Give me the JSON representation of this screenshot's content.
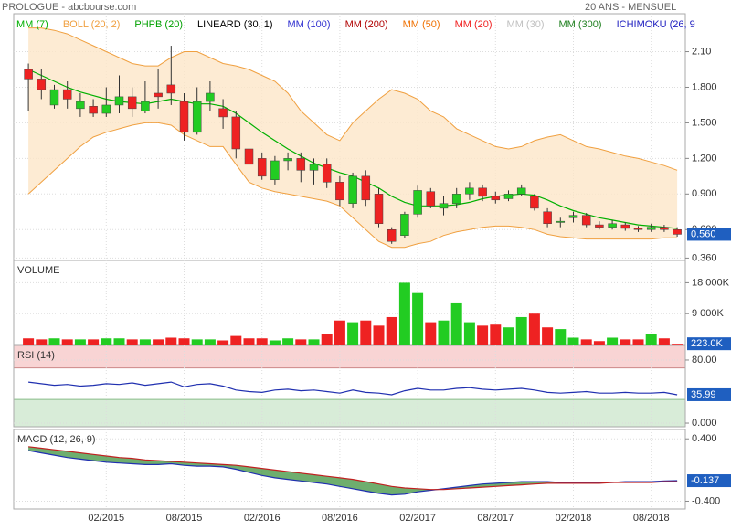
{
  "header": {
    "title": "PROLOGUE - abcbourse.com",
    "period": "20 ANS - MENSUEL"
  },
  "chart_data": [
    {
      "type": "candlestick",
      "categories": [
        null,
        null,
        null,
        null,
        null,
        null,
        "02/2015",
        null,
        null,
        null,
        null,
        null,
        "08/2015",
        null,
        null,
        null,
        null,
        null,
        "02/2016",
        null,
        null,
        null,
        null,
        null,
        "08/2016",
        null,
        null,
        null,
        null,
        null,
        "02/2017",
        null,
        null,
        null,
        null,
        null,
        "08/2017",
        null,
        null,
        null,
        null,
        null,
        "02/2018",
        null,
        null,
        null,
        null,
        null,
        "08/2018",
        null,
        null
      ],
      "open": [
        1.95,
        1.87,
        1.65,
        1.78,
        1.62,
        1.64,
        1.58,
        1.65,
        1.72,
        1.6,
        1.75,
        1.82,
        1.68,
        1.42,
        1.68,
        1.62,
        1.55,
        1.28,
        1.2,
        1.02,
        1.18,
        1.2,
        1.1,
        1.15,
        1.0,
        0.82,
        1.05,
        0.9,
        0.6,
        0.55,
        0.73,
        0.92,
        0.78,
        0.82,
        0.9,
        0.95,
        0.88,
        0.86,
        0.9,
        0.88,
        0.75,
        0.66,
        0.7,
        0.72,
        0.64,
        0.62,
        0.64,
        0.61,
        0.6,
        0.62,
        0.6
      ],
      "high": [
        2.0,
        1.95,
        1.82,
        1.85,
        1.75,
        1.7,
        1.8,
        1.9,
        1.8,
        1.85,
        1.95,
        2.15,
        1.75,
        1.8,
        1.85,
        1.7,
        1.6,
        1.32,
        1.25,
        1.22,
        1.25,
        1.25,
        1.2,
        1.2,
        1.05,
        1.08,
        1.1,
        0.95,
        0.62,
        0.75,
        0.97,
        0.95,
        0.88,
        0.95,
        1.0,
        0.98,
        0.92,
        0.93,
        0.98,
        0.9,
        0.78,
        0.7,
        0.75,
        0.74,
        0.67,
        0.68,
        0.66,
        0.63,
        0.65,
        0.64,
        0.62
      ],
      "low": [
        1.6,
        1.7,
        1.62,
        1.62,
        1.55,
        1.55,
        1.55,
        1.58,
        1.55,
        1.58,
        1.62,
        1.65,
        1.35,
        1.4,
        1.6,
        1.45,
        1.2,
        1.08,
        1.02,
        0.98,
        1.1,
        1.0,
        0.98,
        0.95,
        0.8,
        0.78,
        0.8,
        0.62,
        0.48,
        0.53,
        0.7,
        0.78,
        0.72,
        0.78,
        0.85,
        0.84,
        0.82,
        0.84,
        0.88,
        0.76,
        0.62,
        0.62,
        0.66,
        0.62,
        0.6,
        0.6,
        0.59,
        0.58,
        0.58,
        0.58,
        0.54
      ],
      "close": [
        1.87,
        1.78,
        1.78,
        1.7,
        1.68,
        1.58,
        1.65,
        1.72,
        1.62,
        1.68,
        1.72,
        1.75,
        1.42,
        1.68,
        1.75,
        1.55,
        1.28,
        1.15,
        1.05,
        1.18,
        1.2,
        1.1,
        1.15,
        1.0,
        0.85,
        1.05,
        0.85,
        0.65,
        0.5,
        0.73,
        0.93,
        0.8,
        0.82,
        0.9,
        0.95,
        0.88,
        0.85,
        0.9,
        0.95,
        0.78,
        0.65,
        0.67,
        0.72,
        0.64,
        0.62,
        0.65,
        0.61,
        0.6,
        0.62,
        0.6,
        0.56
      ],
      "close_label": "0.560",
      "up_color": "#22cc22",
      "down_color": "#ee2222",
      "series": [
        {
          "name": "MM (7)",
          "color": "#00b000",
          "values": [
            1.95,
            1.9,
            1.85,
            1.8,
            1.76,
            1.73,
            1.7,
            1.68,
            1.67,
            1.66,
            1.68,
            1.7,
            1.68,
            1.66,
            1.66,
            1.64,
            1.58,
            1.5,
            1.42,
            1.35,
            1.28,
            1.22,
            1.16,
            1.12,
            1.08,
            1.05,
            1.0,
            0.95,
            0.88,
            0.83,
            0.8,
            0.8,
            0.8,
            0.81,
            0.83,
            0.86,
            0.88,
            0.89,
            0.9,
            0.89,
            0.85,
            0.8,
            0.76,
            0.73,
            0.7,
            0.68,
            0.66,
            0.64,
            0.63,
            0.62,
            0.61
          ]
        },
        {
          "name": "BOLL (20, 2)",
          "color": "#f0a040",
          "fill": "#fde6c8",
          "upper": [
            2.3,
            2.3,
            2.28,
            2.25,
            2.2,
            2.15,
            2.1,
            2.05,
            2.0,
            1.98,
            1.98,
            2.05,
            2.1,
            2.1,
            2.05,
            2.0,
            1.98,
            1.95,
            1.9,
            1.85,
            1.75,
            1.6,
            1.5,
            1.4,
            1.35,
            1.5,
            1.6,
            1.7,
            1.78,
            1.75,
            1.7,
            1.6,
            1.55,
            1.45,
            1.4,
            1.35,
            1.3,
            1.28,
            1.3,
            1.35,
            1.38,
            1.4,
            1.35,
            1.3,
            1.28,
            1.25,
            1.22,
            1.2,
            1.17,
            1.14,
            1.1
          ],
          "lower": [
            0.9,
            1.0,
            1.1,
            1.2,
            1.3,
            1.38,
            1.42,
            1.45,
            1.48,
            1.5,
            1.5,
            1.48,
            1.4,
            1.35,
            1.3,
            1.3,
            1.15,
            1.0,
            0.95,
            0.92,
            0.9,
            0.88,
            0.86,
            0.84,
            0.8,
            0.7,
            0.6,
            0.5,
            0.45,
            0.45,
            0.48,
            0.5,
            0.55,
            0.58,
            0.6,
            0.62,
            0.63,
            0.63,
            0.62,
            0.6,
            0.56,
            0.54,
            0.53,
            0.52,
            0.52,
            0.52,
            0.52,
            0.52,
            0.52,
            0.53,
            0.53
          ]
        },
        {
          "name": "PHPB (20)",
          "color": "#00a000"
        },
        {
          "name": "LINEARD (30, 1)",
          "color": "#000000"
        },
        {
          "name": "MM (100)",
          "color": "#3030d0"
        },
        {
          "name": "MM (200)",
          "color": "#b00000"
        },
        {
          "name": "MM (50)",
          "color": "#f07000"
        },
        {
          "name": "MM (20)",
          "color": "#f02020"
        },
        {
          "name": "MM (30)",
          "color": "#c0c0c0"
        },
        {
          "name": "MM (300)",
          "color": "#208020"
        },
        {
          "name": "ICHIMOKU (26, 9",
          "color": "#2020c0"
        }
      ],
      "ylim": [
        0.34,
        2.42
      ],
      "yticks": [
        {
          "value": 2.1,
          "label": "2.10"
        },
        {
          "value": 1.8,
          "label": "1.800"
        },
        {
          "value": 1.5,
          "label": "1.500"
        },
        {
          "value": 1.2,
          "label": "1.200"
        },
        {
          "value": 0.9,
          "label": "0.900"
        },
        {
          "value": 0.6,
          "label": "0.600"
        },
        {
          "value": 0.36,
          "label": "0.360"
        }
      ],
      "grid": true
    },
    {
      "type": "bar",
      "title": "VOLUME",
      "values": [
        1800,
        1500,
        1800,
        1500,
        1500,
        1500,
        1800,
        1800,
        1500,
        1500,
        1500,
        2000,
        1800,
        1500,
        1500,
        1200,
        2500,
        1800,
        1800,
        1200,
        1800,
        1500,
        1500,
        3000,
        7000,
        6500,
        7000,
        5500,
        8000,
        18000,
        15000,
        6500,
        7000,
        12000,
        6500,
        5500,
        5800,
        5000,
        8000,
        9000,
        5000,
        4500,
        2000,
        1500,
        1000,
        2000,
        1500,
        1500,
        3000,
        1800,
        223
      ],
      "last_label": "223.0K",
      "ylim": [
        0,
        24500
      ],
      "yticks": [
        {
          "value": 18000,
          "label": "18 000K"
        },
        {
          "value": 9000,
          "label": "9 000K"
        }
      ],
      "grid": true
    },
    {
      "type": "line",
      "title": "RSI (14)",
      "series": [
        {
          "name": "RSI",
          "color": "#2030b0",
          "values": [
            52,
            50,
            48,
            49,
            47,
            48,
            50,
            49,
            51,
            48,
            50,
            52,
            46,
            49,
            50,
            47,
            42,
            40,
            39,
            42,
            43,
            41,
            42,
            40,
            38,
            42,
            39,
            38,
            36,
            41,
            44,
            42,
            42,
            44,
            45,
            43,
            42,
            43,
            44,
            42,
            39,
            38,
            39,
            40,
            38,
            38,
            39,
            38,
            38,
            39,
            35.99
          ]
        }
      ],
      "levels": [
        70,
        30
      ],
      "level_colors": [
        "#f8d4d4",
        "#d8ecd8"
      ],
      "ylim": [
        -4.6,
        98.5
      ],
      "yticks": [
        {
          "value": 80,
          "label": "80.00"
        },
        {
          "value": 0,
          "label": "0.000"
        }
      ],
      "grid": true
    },
    {
      "type": "line",
      "title": "MACD (12, 26, 9)",
      "series": [
        {
          "name": "MACD",
          "color": "#2030b0",
          "values": [
            0.25,
            0.22,
            0.19,
            0.16,
            0.14,
            0.12,
            0.1,
            0.09,
            0.08,
            0.07,
            0.07,
            0.08,
            0.06,
            0.05,
            0.05,
            0.04,
            0.01,
            -0.03,
            -0.07,
            -0.1,
            -0.12,
            -0.14,
            -0.16,
            -0.18,
            -0.21,
            -0.24,
            -0.27,
            -0.3,
            -0.32,
            -0.31,
            -0.28,
            -0.26,
            -0.24,
            -0.22,
            -0.2,
            -0.18,
            -0.17,
            -0.16,
            -0.15,
            -0.15,
            -0.15,
            -0.16,
            -0.16,
            -0.16,
            -0.16,
            -0.16,
            -0.15,
            -0.15,
            -0.15,
            -0.14,
            -0.137
          ]
        },
        {
          "name": "Signal",
          "color": "#c02020",
          "values": [
            0.3,
            0.28,
            0.26,
            0.24,
            0.22,
            0.2,
            0.18,
            0.16,
            0.15,
            0.13,
            0.12,
            0.11,
            0.1,
            0.09,
            0.08,
            0.07,
            0.06,
            0.04,
            0.02,
            0.0,
            -0.02,
            -0.04,
            -0.06,
            -0.08,
            -0.1,
            -0.12,
            -0.15,
            -0.18,
            -0.21,
            -0.23,
            -0.24,
            -0.25,
            -0.25,
            -0.24,
            -0.23,
            -0.22,
            -0.21,
            -0.2,
            -0.19,
            -0.18,
            -0.17,
            -0.17,
            -0.17,
            -0.17,
            -0.17,
            -0.16,
            -0.16,
            -0.16,
            -0.16,
            -0.15,
            -0.15
          ]
        }
      ],
      "fill": "#4a9a4a",
      "ylim": [
        -0.5,
        0.52
      ],
      "yticks": [
        {
          "value": 0.4,
          "label": "0.400"
        },
        {
          "value": -0.4,
          "label": "-0.400"
        }
      ],
      "grid": true
    }
  ]
}
